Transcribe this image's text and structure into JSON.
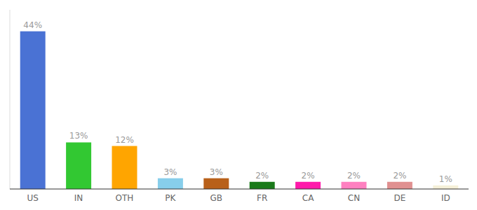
{
  "chart_data": {
    "type": "bar",
    "categories": [
      "US",
      "IN",
      "OTH",
      "PK",
      "GB",
      "FR",
      "CA",
      "CN",
      "DE",
      "ID"
    ],
    "values": [
      44,
      13,
      12,
      3,
      3,
      2,
      2,
      2,
      2,
      1
    ],
    "colors": [
      "#4a72d4",
      "#32c832",
      "#ffa500",
      "#87ceeb",
      "#b8601a",
      "#1a7a1a",
      "#ff1aaa",
      "#ff80c0",
      "#e09090",
      "#f5f0d8"
    ],
    "ylim": [
      0,
      50
    ],
    "data_labels": true,
    "value_labels": [
      "44%",
      "13%",
      "12%",
      "3%",
      "3%",
      "2%",
      "2%",
      "2%",
      "2%",
      "1%"
    ],
    "tick_labels": "x",
    "grid": false
  }
}
